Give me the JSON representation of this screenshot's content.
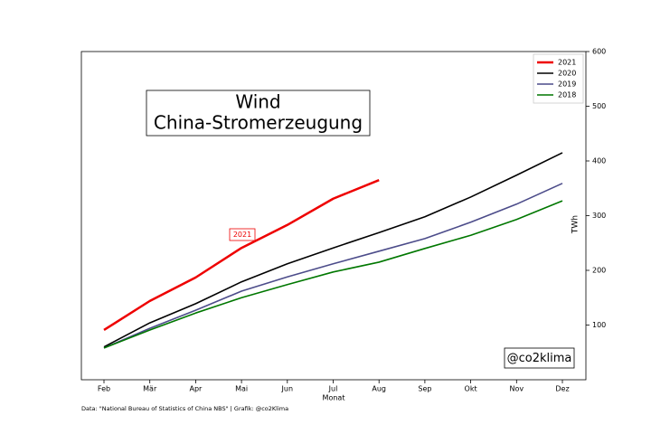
{
  "chart_data": {
    "type": "line",
    "title": [
      "Wind",
      "China-Stromerzeugung"
    ],
    "annotation": "2021",
    "watermark": "@co2klima",
    "source": "Data: \"National Bureau of Statistics of China NBS\" | Grafik: @co2Klima",
    "xlabel": "Monat",
    "ylabel": "TWh",
    "categories": [
      "Feb",
      "Mär",
      "Apr",
      "Mai",
      "Jun",
      "Jul",
      "Aug",
      "Sep",
      "Okt",
      "Nov",
      "Dez"
    ],
    "series": [
      {
        "name": "2021",
        "color": "#ee0000",
        "width": 2.5,
        "values": [
          91,
          144,
          187,
          241,
          283,
          331,
          365,
          null,
          null,
          null,
          null
        ]
      },
      {
        "name": "2020",
        "color": "#000000",
        "width": 1.6,
        "values": [
          60,
          104,
          139,
          179,
          212,
          241,
          269,
          298,
          334,
          374,
          415
        ]
      },
      {
        "name": "2019",
        "color": "#4c4c8a",
        "width": 1.6,
        "values": [
          58,
          94,
          127,
          162,
          188,
          212,
          235,
          258,
          288,
          321,
          359
        ]
      },
      {
        "name": "2018",
        "color": "#007700",
        "width": 1.6,
        "values": [
          58,
          91,
          122,
          150,
          174,
          197,
          215,
          240,
          264,
          293,
          327
        ]
      }
    ],
    "ylim": [
      0,
      600
    ],
    "yticks": [
      100,
      200,
      300,
      400,
      500,
      600
    ],
    "y_axis_side": "right",
    "legend": "upper right",
    "grid": false
  }
}
